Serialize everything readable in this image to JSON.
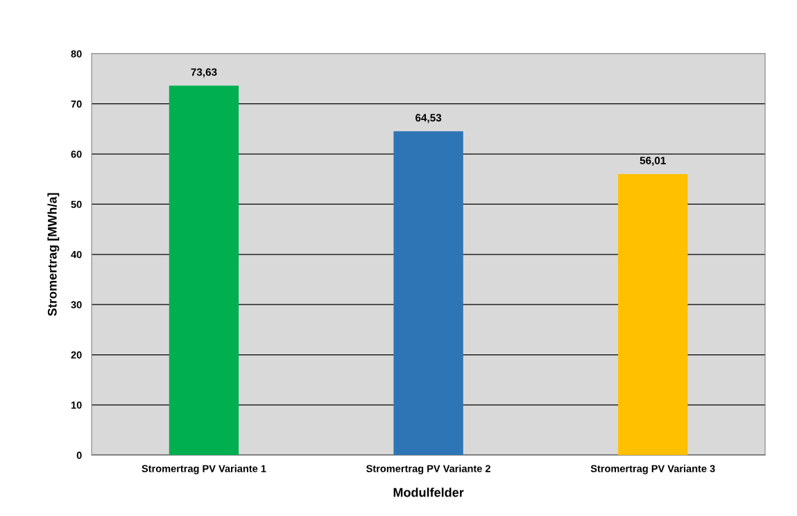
{
  "chart_data": {
    "type": "bar",
    "categories": [
      "Stromertrag PV Variante 1",
      "Stromertrag PV Variante 2",
      "Stromertrag PV Variante 3"
    ],
    "values": [
      73.63,
      64.53,
      56.01
    ],
    "colors": [
      "#00b050",
      "#2e75b6",
      "#ffc000"
    ],
    "value_labels": [
      "73,63",
      "64,53",
      "56,01"
    ],
    "xlabel": "Modulfelder",
    "ylabel": "Stromertrag [MWh/a]",
    "ylim": [
      0,
      80
    ],
    "yticks": [
      0,
      10,
      20,
      30,
      40,
      50,
      60,
      70,
      80
    ],
    "grid": "y"
  }
}
